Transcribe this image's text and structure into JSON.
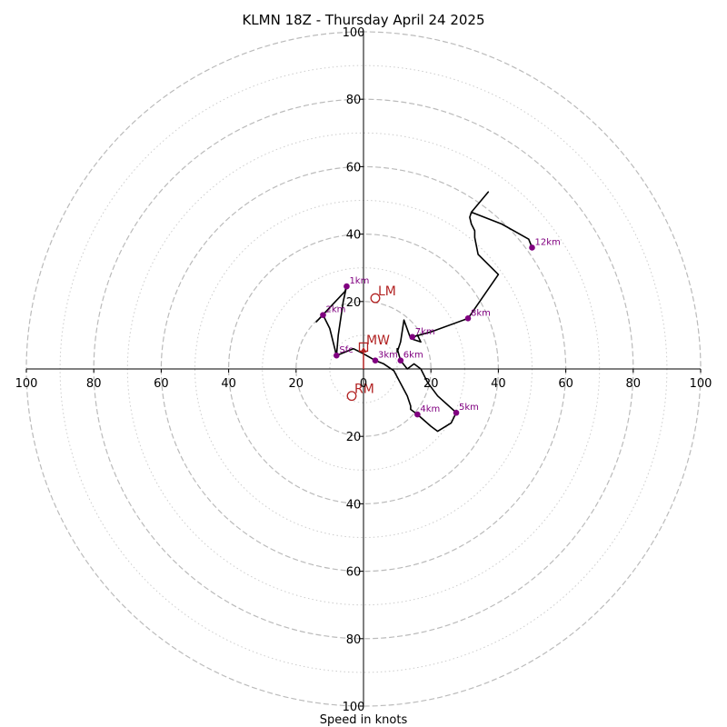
{
  "chart_data": {
    "type": "hodograph",
    "title": "KLMN 18Z - Thursday April 24 2025",
    "xlabel": "Speed in knots",
    "range": 100,
    "major_rings": [
      20,
      40,
      60,
      80,
      100
    ],
    "minor_rings": [
      10,
      30,
      50,
      70,
      90
    ],
    "x_tick_labels": [
      "100",
      "80",
      "60",
      "40",
      "20",
      "0",
      "20",
      "40",
      "60",
      "80",
      "100"
    ],
    "x_tick_values": [
      -100,
      -80,
      -60,
      -40,
      -20,
      0,
      20,
      40,
      60,
      80,
      100
    ],
    "y_tick_labels": [
      "100",
      "80",
      "60",
      "40",
      "20",
      "20",
      "40",
      "60",
      "80",
      "100"
    ],
    "y_tick_values": [
      100,
      80,
      60,
      40,
      20,
      -20,
      -40,
      -60,
      -80,
      -100
    ],
    "trace_color": "#000000",
    "height_color": "#800080",
    "motion_color": "#b22222",
    "trace": [
      [
        -8,
        4
      ],
      [
        -10,
        12
      ],
      [
        -12,
        16
      ],
      [
        -14,
        14
      ],
      [
        -5.5,
        23
      ],
      [
        -5,
        24.5
      ],
      [
        -6,
        20
      ],
      [
        -7.5,
        10
      ],
      [
        -8,
        4
      ],
      [
        -3,
        6
      ],
      [
        0,
        4.5
      ],
      [
        3.5,
        2.5
      ],
      [
        6,
        1.5
      ],
      [
        9,
        -0.5
      ],
      [
        13,
        -8
      ],
      [
        14,
        -11
      ],
      [
        14,
        -12
      ],
      [
        16,
        -13.5
      ],
      [
        20,
        -17
      ],
      [
        22,
        -18.5
      ],
      [
        26,
        -16
      ],
      [
        27.5,
        -13
      ],
      [
        27,
        -12.5
      ],
      [
        22,
        -8
      ],
      [
        19,
        -4
      ],
      [
        17,
        0
      ],
      [
        15,
        1.5
      ],
      [
        13,
        0
      ],
      [
        11,
        2.5
      ],
      [
        10,
        6
      ],
      [
        10,
        5
      ],
      [
        11,
        8
      ],
      [
        12,
        14.5
      ],
      [
        14,
        9
      ],
      [
        17,
        8
      ],
      [
        16,
        10
      ],
      [
        14,
        9
      ],
      [
        14.5,
        9.5
      ],
      [
        20,
        11
      ],
      [
        31,
        15
      ],
      [
        40,
        28
      ],
      [
        34,
        34
      ],
      [
        33,
        39
      ],
      [
        33,
        41
      ],
      [
        32,
        43
      ],
      [
        31.5,
        45
      ],
      [
        32,
        46.5
      ],
      [
        37,
        52.5
      ],
      [
        32,
        46.5
      ],
      [
        41,
        43
      ],
      [
        49,
        38.5
      ],
      [
        50,
        36
      ]
    ],
    "height_markers": [
      {
        "label": "Sfc",
        "u": -8,
        "v": 4
      },
      {
        "label": "1km",
        "u": -5,
        "v": 24.5
      },
      {
        "label": "2km",
        "u": -12,
        "v": 16
      },
      {
        "label": "3km",
        "u": 3.5,
        "v": 2.5
      },
      {
        "label": "4km",
        "u": 16,
        "v": -13.5
      },
      {
        "label": "5km",
        "u": 27.5,
        "v": -13
      },
      {
        "label": "6km",
        "u": 11,
        "v": 2.5
      },
      {
        "label": "7km",
        "u": 14.5,
        "v": 9.5
      },
      {
        "label": "8km",
        "u": 31,
        "v": 15
      },
      {
        "label": "12km",
        "u": 50,
        "v": 36
      }
    ],
    "storm_motions": [
      {
        "label": "LM",
        "u": 3.5,
        "v": 21,
        "shape": "circle"
      },
      {
        "label": "MW",
        "u": 0,
        "v": 6.5,
        "shape": "square"
      },
      {
        "label": "RM",
        "u": -3.5,
        "v": -8,
        "shape": "circle"
      }
    ],
    "mean_wind_arrow": {
      "from": [
        0,
        0
      ],
      "to": [
        0,
        6.5
      ]
    }
  }
}
